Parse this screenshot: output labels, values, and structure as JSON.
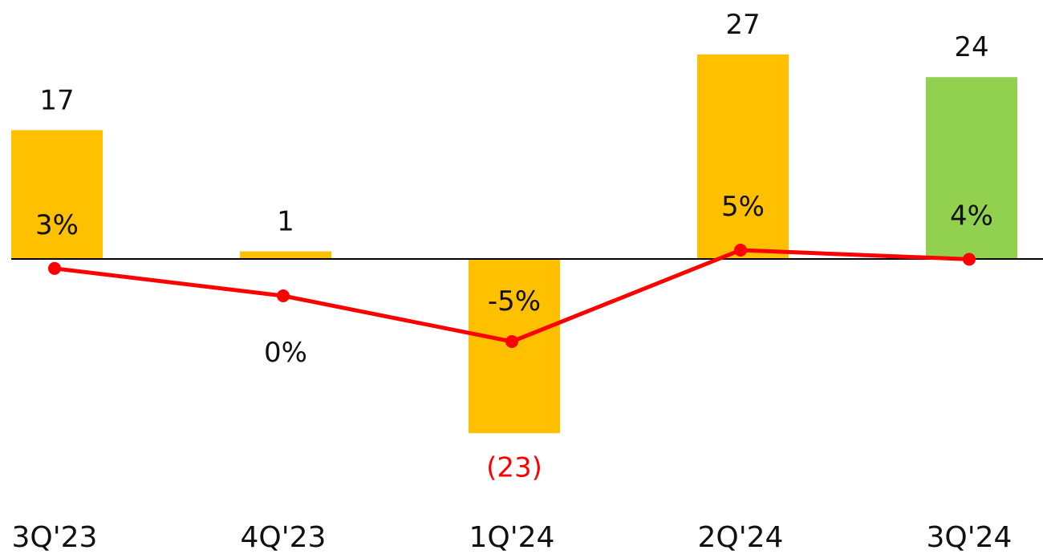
{
  "chart_data": {
    "type": "bar",
    "categories": [
      "3Q'23",
      "4Q'23",
      "1Q'24",
      "2Q'24",
      "3Q'24"
    ],
    "series": [
      {
        "values": [
          17,
          1,
          -23,
          27,
          24
        ],
        "value_labels": [
          "17",
          "1",
          "(23)",
          "27",
          "24"
        ],
        "colors": [
          "#FFC000",
          "#FFC000",
          "#FFC000",
          "#FFC000",
          "#92D050"
        ]
      },
      {
        "type": "line",
        "values": [
          3,
          0,
          -5,
          5,
          4
        ],
        "value_labels": [
          "3%",
          "0%",
          "-5%",
          "5%",
          "4%"
        ],
        "color": "#FF0000"
      }
    ],
    "negative_label_color": "#FF0000",
    "baseline_color": "#000000",
    "grid": false
  }
}
